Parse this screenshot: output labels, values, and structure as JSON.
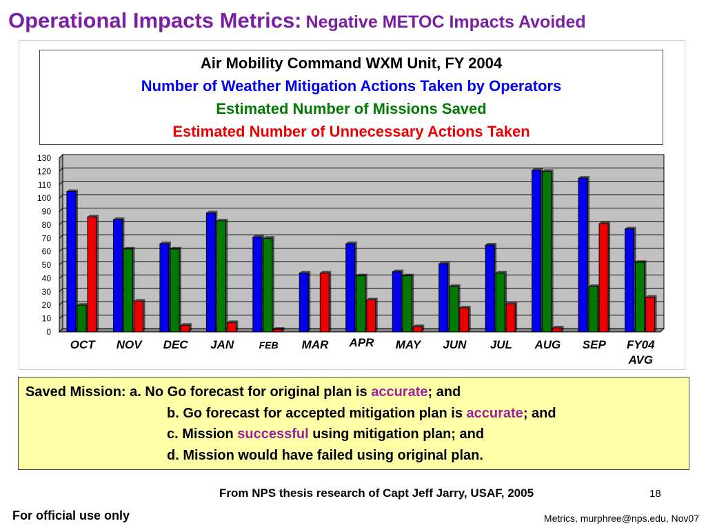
{
  "slide": {
    "title_main": "Operational Impacts Metrics:",
    "title_sub": "Negative METOC Impacts Avoided",
    "page_number": "18",
    "source": "From NPS thesis research of Capt Jeff Jarry, USAF, 2005",
    "classification": "For official use only",
    "footer_id": "Metrics, murphree@nps.edu, Nov07"
  },
  "colors": {
    "title": "#7b1fa2",
    "actions": "#0000ee",
    "saved": "#007a00",
    "unnecessary": "#ee0000",
    "accent": "#a020a0",
    "plot_bg": "#c0c0c0",
    "note_bg": "#ffffa8"
  },
  "chart_data": {
    "type": "bar",
    "title": "Air Mobility Command WXM Unit, FY 2004",
    "categories": [
      "OCT",
      "NOV",
      "DEC",
      "JAN",
      "FEB",
      "MAR",
      "APR",
      "MAY",
      "JUN",
      "JUL",
      "AUG",
      "SEP",
      "FY04 AVG"
    ],
    "series": [
      {
        "name": "Number of Weather Mitigation Actions Taken by Operators",
        "color": "#0000ee",
        "values": [
          105,
          84,
          66,
          89,
          71,
          44,
          66,
          45,
          51,
          65,
          121,
          115,
          77
        ]
      },
      {
        "name": "Estimated Number of Missions Saved",
        "color": "#007a00",
        "values": [
          20,
          62,
          62,
          83,
          70,
          null,
          42,
          42,
          34,
          44,
          120,
          34,
          52
        ]
      },
      {
        "name": "Estimated Number of Unnecessary Actions Taken",
        "color": "#ee0000",
        "values": [
          86,
          23,
          5,
          7,
          2,
          44,
          24,
          4,
          18,
          21,
          3,
          81,
          26
        ]
      }
    ],
    "ylim": [
      0,
      130
    ],
    "yticks": [
      0,
      10,
      20,
      30,
      40,
      50,
      60,
      70,
      80,
      90,
      100,
      110,
      120,
      130
    ],
    "grid": true,
    "legend": "top"
  },
  "note": {
    "line1_prefix": "Saved Mission:  a.  No Go forecast for original plan is ",
    "line1_accent": "accurate",
    "line1_suffix": "; and",
    "line2_prefix": "b.  Go forecast for accepted mitigation plan is ",
    "line2_accent": "accurate",
    "line2_suffix": "; and",
    "line3_prefix": "c.   Mission ",
    "line3_accent": "successful",
    "line3_suffix": " using mitigation plan; and",
    "line4": "d.   Mission would have failed using original plan."
  }
}
